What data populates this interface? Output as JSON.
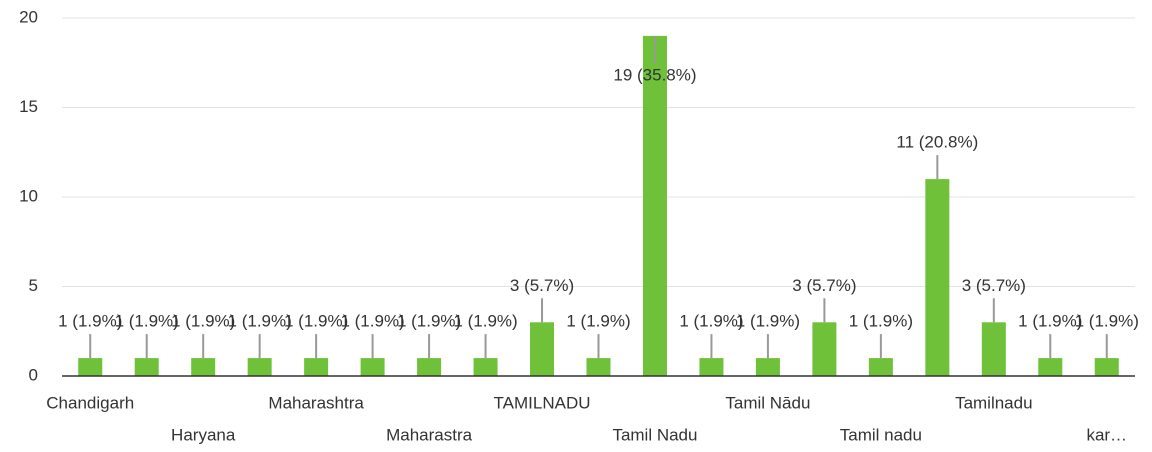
{
  "chart_data": {
    "type": "bar",
    "categories": [
      "Chandigarh",
      null,
      "Haryana",
      null,
      "Maharashtra",
      null,
      "Maharastra",
      null,
      "TAMILNADU",
      null,
      "Tamil Nadu",
      null,
      "Tamil Nādu",
      null,
      "Tamil nadu",
      null,
      "Tamilnadu",
      null,
      "kar…"
    ],
    "values": [
      1,
      1,
      1,
      1,
      1,
      1,
      1,
      1,
      3,
      1,
      19,
      1,
      1,
      3,
      1,
      11,
      3,
      1,
      1
    ],
    "value_labels": [
      "1 (1.9%)",
      "1 (1.9%)",
      "1 (1.9%)",
      "1 (1.9%)",
      "1 (1.9%)",
      "1 (1.9%)",
      "1 (1.9%)",
      "1 (1.9%)",
      "3 (5.7%)",
      "1 (1.9%)",
      "19 (35.8%)",
      "1 (1.9%)",
      "1 (1.9%)",
      "3 (5.7%)",
      "1 (1.9%)",
      "11 (20.8%)",
      "3 (5.7%)",
      "1 (1.9%)",
      "1 (1.9%)"
    ],
    "color": "#6fc13a",
    "ylim": [
      0,
      20
    ],
    "yticks": [
      0,
      5,
      10,
      15,
      20
    ],
    "grid": true
  }
}
